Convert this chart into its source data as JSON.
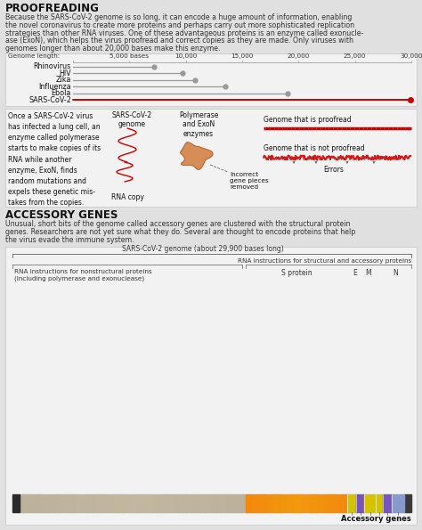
{
  "bg_color": "#e0e0e0",
  "panel_color": "#f2f2f2",
  "panel_edge": "#cccccc",
  "title1": "PROOFREADING",
  "title2": "ACCESSORY GENES",
  "para1_lines": [
    "Because the SARS-CoV-2 genome is so long, it can encode a huge amount of information, enabling",
    "the novel coronavirus to create more proteins and perhaps carry out more sophisticated replication",
    "strategies than other RNA viruses. One of these advantageous proteins is an enzyme called exonucle-",
    "ase (ExoN), which helps the virus proofread and correct copies as they are made. Only viruses with",
    "genomes longer than about 20,000 bases make this enzyme."
  ],
  "para2_lines": [
    "Unusual, short bits of the genome called accessory genes are clustered with the structural protein",
    "genes. Researchers are not yet sure what they do. Several are thought to encode proteins that help",
    "the virus evade the immune system."
  ],
  "viruses": [
    "Rhinovirus",
    "HIV",
    "Zika",
    "Influenza",
    "Ebola",
    "SARS-CoV-2"
  ],
  "genome_lengths": [
    7200,
    9700,
    10800,
    13500,
    19000,
    29900
  ],
  "gray_color": "#999999",
  "red_color": "#cc0000",
  "axis_max": 30000,
  "axis_ticks": [
    0,
    5000,
    10000,
    15000,
    20000,
    25000,
    30000
  ],
  "axis_labels": [
    "",
    "5,000 bases",
    "10,000",
    "15,000",
    "20,000",
    "25,000",
    "30,000"
  ],
  "genome_label": "Genome length:",
  "proofread_text": "Genome that is proofread",
  "not_proofread_text": "Genome that is not proofread",
  "errors_text": "Errors",
  "sars_genome_label": "SARS-CoV-2\ngenome",
  "polymerase_label": "Polymerase\nand ExoN\nenzymes",
  "rna_copy_label": "RNA copy",
  "incorrect_label": "Incorrect\ngene pieces\nremoved",
  "once_text": "Once a SARS-CoV-2 virus\nhas infected a lung cell, an\nenzyme called polymerase\nstarts to make copies of its\nRNA while another\nenzyme, ExoN, finds\nrandom mutations and\nexpels these genetic mis-\ntakes from the copies.",
  "genome_bar_label": "SARS-CoV-2 genome (about 29,900 bases long)",
  "rna_struct_label": "RNA instructions for structural and accessory proteins",
  "rna_nonstruct_label": "RNA instructions for nonstructural proteins\n(including polymerase and exonuclease)",
  "accessory_genes_label": "Accessory genes",
  "s_protein_label": "S protein",
  "e_label": "E",
  "m_label": "M",
  "n_label": "N",
  "text_color": "#333333",
  "dark_text": "#111111"
}
